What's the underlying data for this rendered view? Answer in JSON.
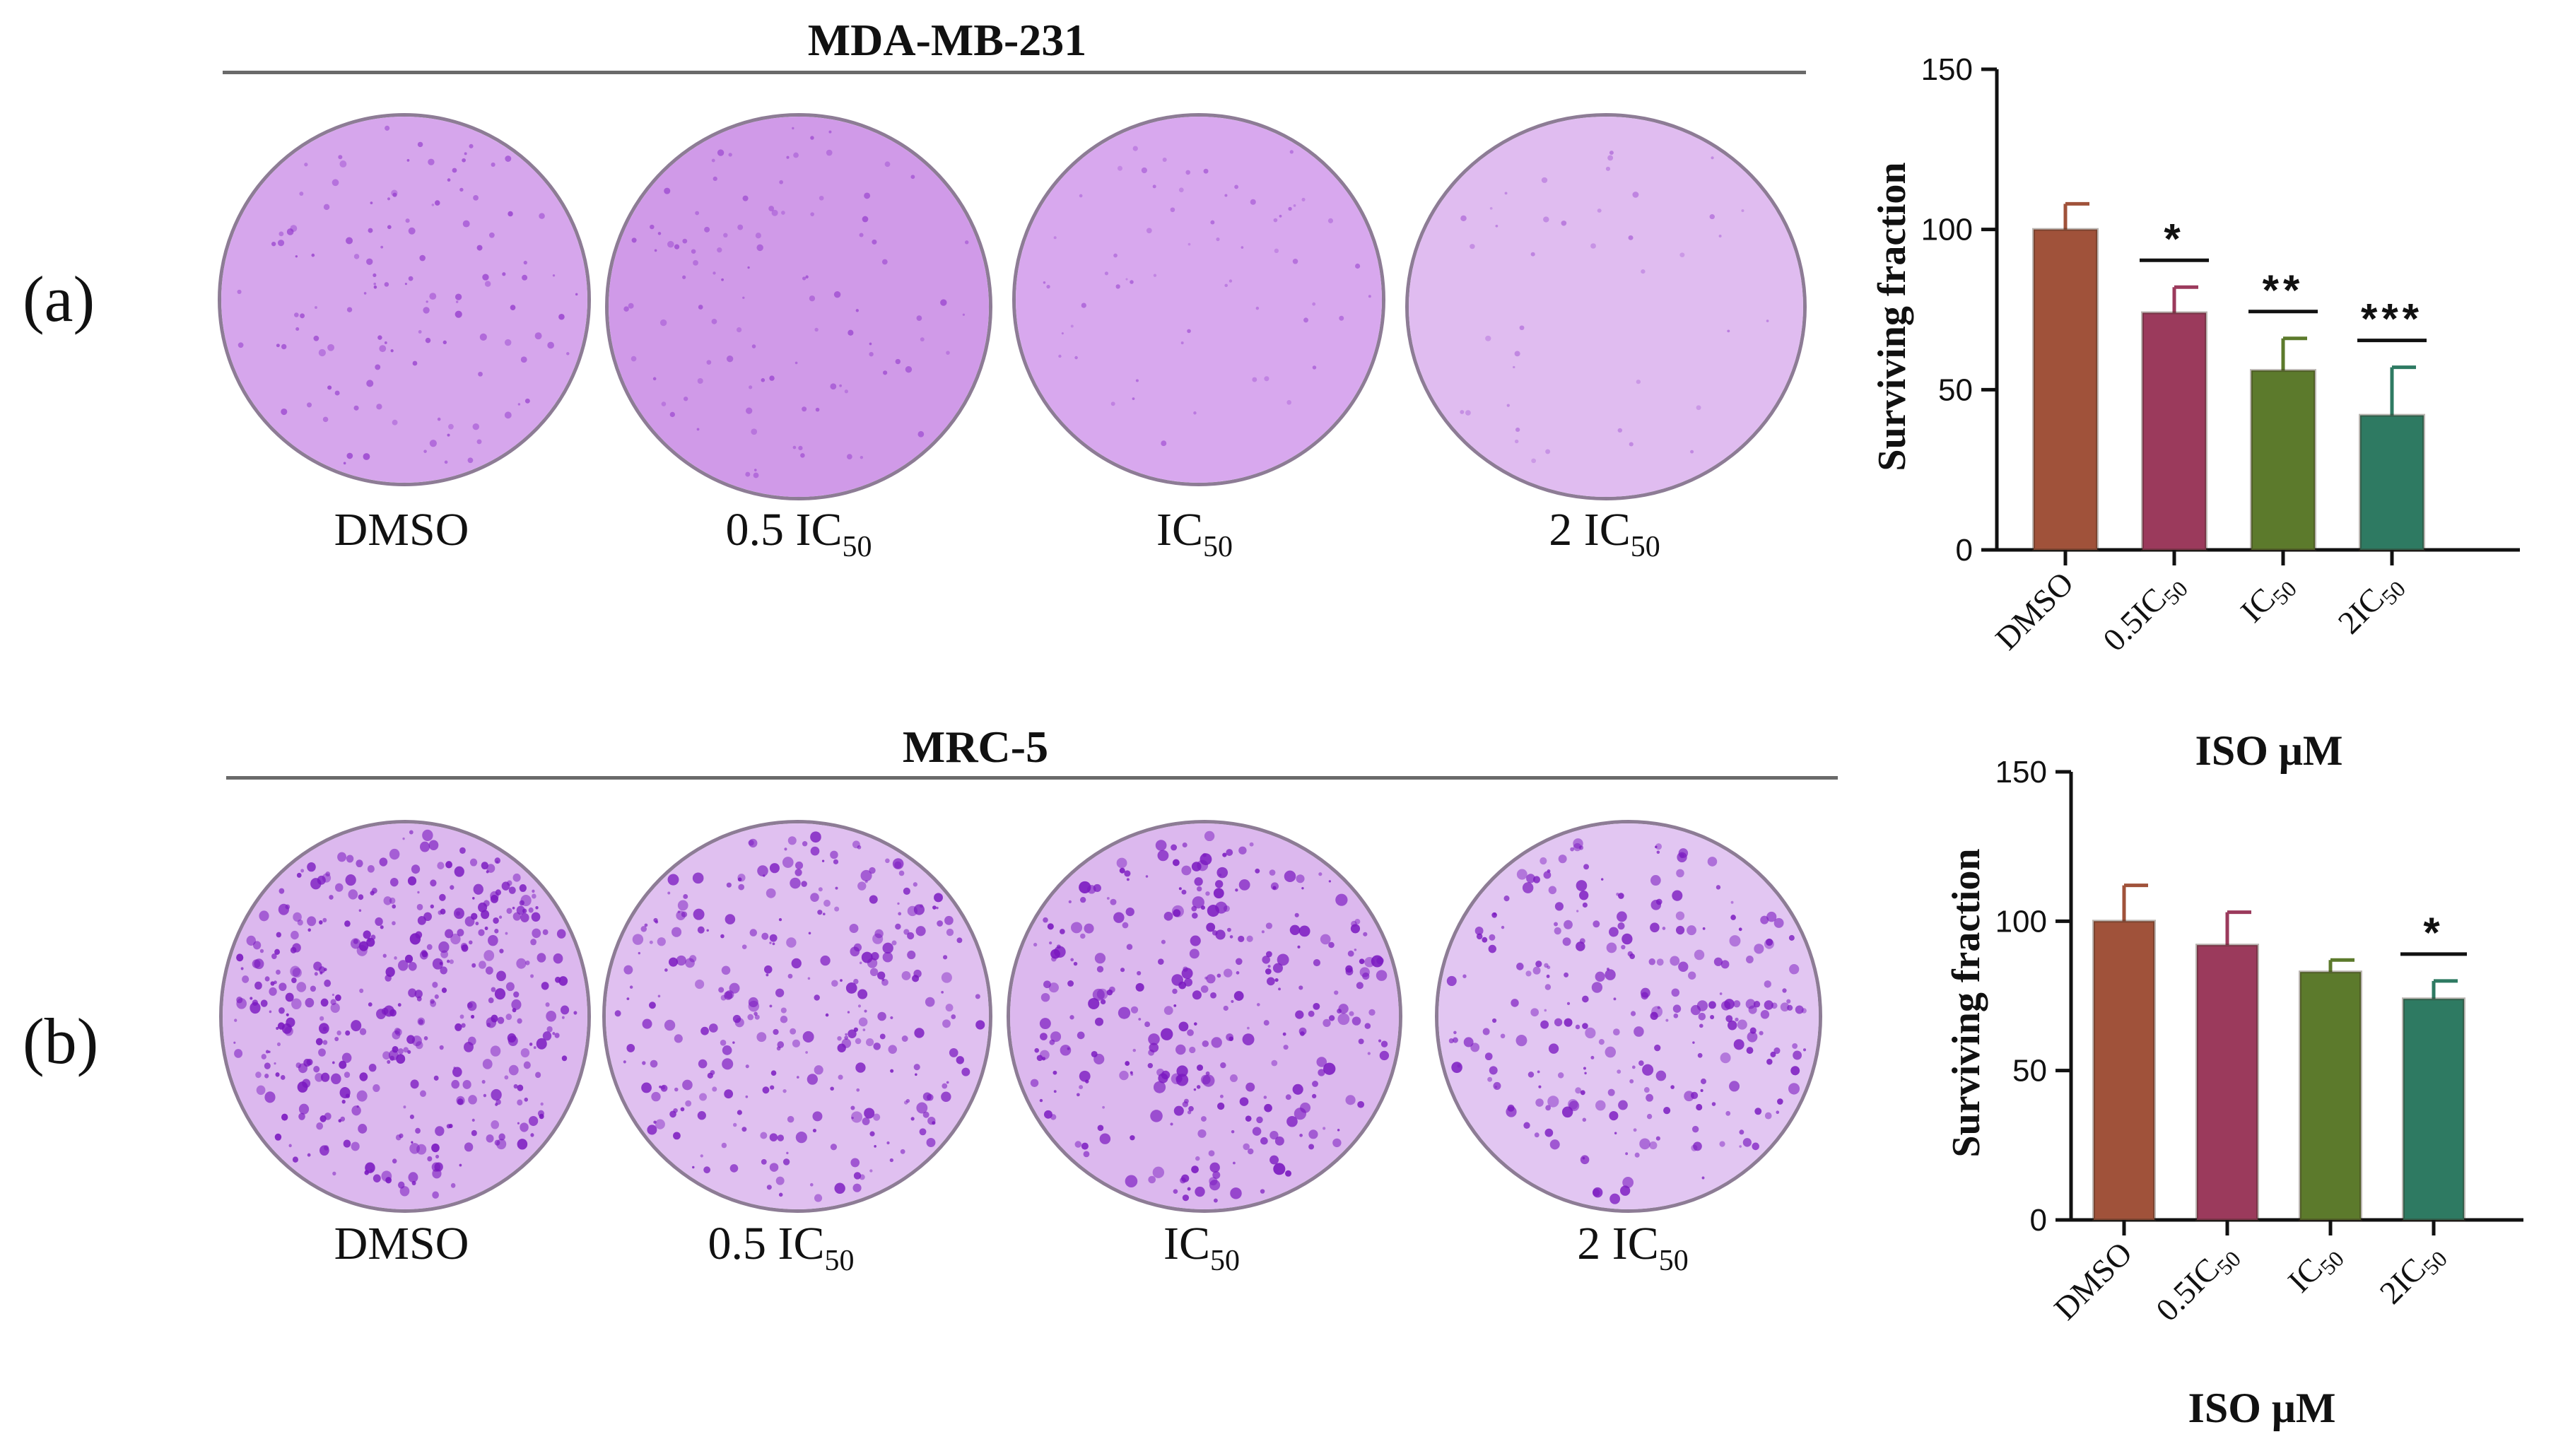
{
  "panel_a": {
    "label": "(a)",
    "cell_line": "MDA-MB-231",
    "dish_labels": [
      {
        "main": "DMSO",
        "sub": ""
      },
      {
        "main": "0.5 IC",
        "sub": "50"
      },
      {
        "main": "IC",
        "sub": "50"
      },
      {
        "main": "2 IC",
        "sub": "50"
      }
    ]
  },
  "panel_b": {
    "label": "(b)",
    "cell_line": "MRC-5",
    "dish_labels": [
      {
        "main": "DMSO",
        "sub": ""
      },
      {
        "main": "0.5 IC",
        "sub": "50"
      },
      {
        "main": "IC",
        "sub": "50"
      },
      {
        "main": "2 IC",
        "sub": "50"
      }
    ]
  },
  "colors": {
    "dmso": "#a0523a",
    "half_ic50": "#9b3a5c",
    "ic50": "#5c7a2c",
    "two_ic50": "#2e7a62",
    "dish_fill_light": "#d9b4ec",
    "colony": "#8a2bc8"
  },
  "chart_data": [
    {
      "type": "bar",
      "panel": "a",
      "categories": [
        "DMSO",
        "0.5IC50",
        "IC50",
        "2IC50"
      ],
      "category_labels": [
        {
          "main": "DMSO",
          "sub": ""
        },
        {
          "main": "0.5IC",
          "sub": "50"
        },
        {
          "main": "IC",
          "sub": "50"
        },
        {
          "main": "2IC",
          "sub": "50"
        }
      ],
      "values": [
        100,
        74,
        56,
        42
      ],
      "errors": [
        8,
        8,
        10,
        15
      ],
      "significance": [
        "",
        "*",
        "**",
        "***"
      ],
      "xlabel": "ISO μM",
      "ylabel": "Surviving fraction",
      "ylim": [
        0,
        150
      ],
      "yticks": [
        0,
        50,
        100,
        150
      ],
      "grid": false,
      "bar_colors": [
        "#a0523a",
        "#9b3a5c",
        "#5c7a2c",
        "#2e7a62"
      ]
    },
    {
      "type": "bar",
      "panel": "b",
      "categories": [
        "DMSO",
        "0.5IC50",
        "IC50",
        "2IC50"
      ],
      "category_labels": [
        {
          "main": "DMSO",
          "sub": ""
        },
        {
          "main": "0.5IC",
          "sub": "50"
        },
        {
          "main": "IC",
          "sub": "50"
        },
        {
          "main": "2IC",
          "sub": "50"
        }
      ],
      "values": [
        100,
        92,
        83,
        74
      ],
      "errors": [
        12,
        11,
        4,
        6
      ],
      "significance": [
        "",
        "",
        "",
        "*"
      ],
      "xlabel": "ISO μM",
      "ylabel": "Surviving fraction",
      "ylim": [
        0,
        150
      ],
      "yticks": [
        0,
        50,
        100,
        150
      ],
      "grid": false,
      "bar_colors": [
        "#a0523a",
        "#9b3a5c",
        "#5c7a2c",
        "#2e7a62"
      ]
    }
  ]
}
